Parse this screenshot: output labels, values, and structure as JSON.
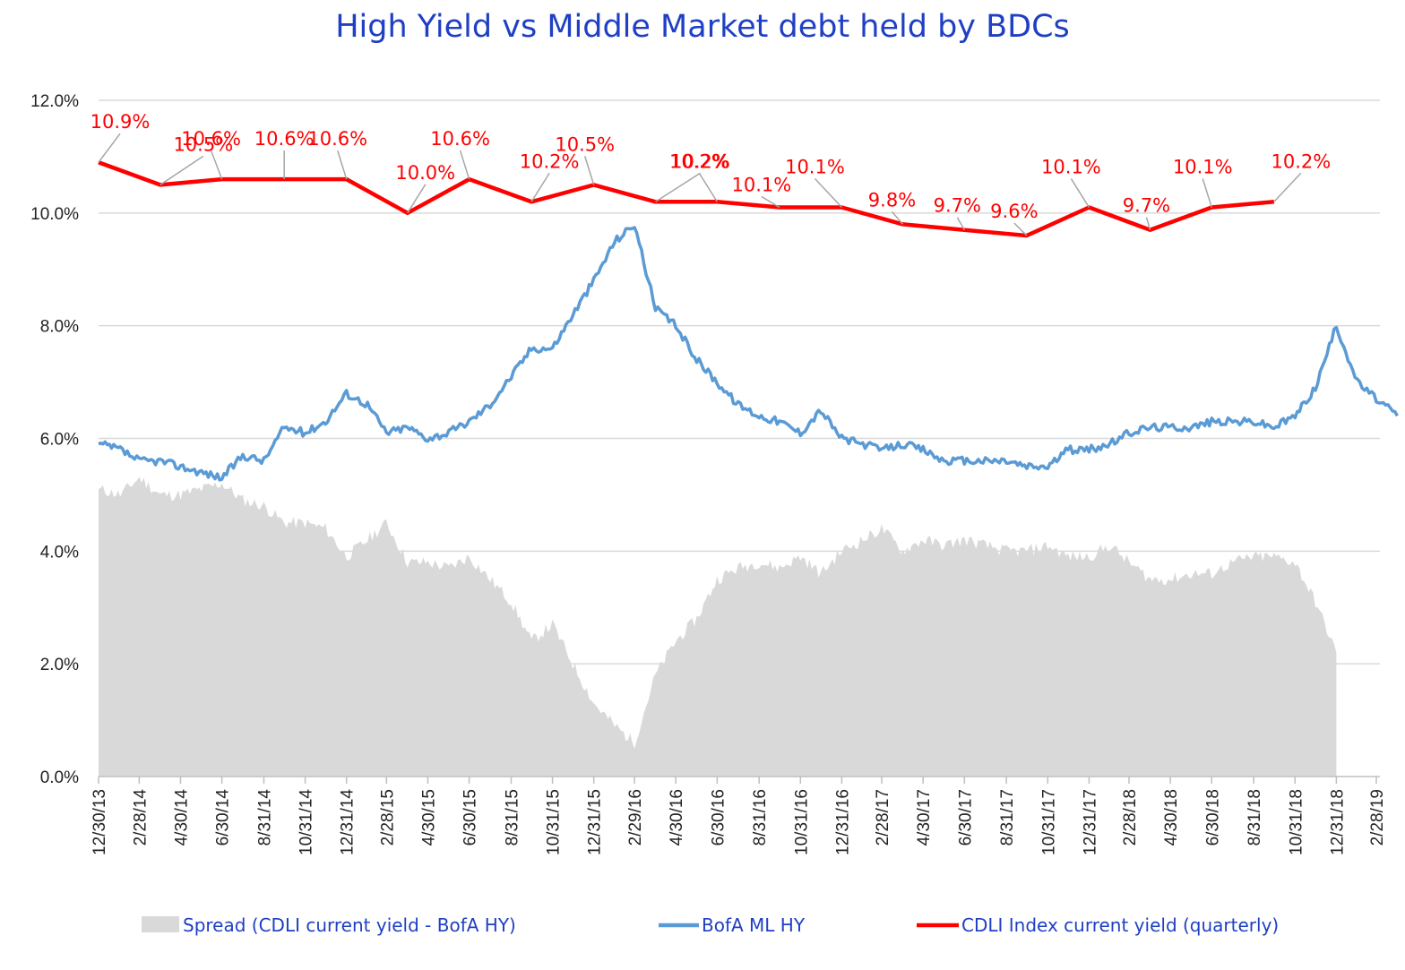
{
  "chart_data": {
    "type": "line",
    "title": "High Yield  vs  Middle Market debt held by BDCs",
    "xlabel": "",
    "ylabel": "",
    "ylim": [
      0,
      12
    ],
    "y_ticks": [
      "0.0%",
      "2.0%",
      "4.0%",
      "6.0%",
      "8.0%",
      "10.0%",
      "12.0%"
    ],
    "x_ticks": [
      "12/30/13",
      "2/28/14",
      "4/30/14",
      "6/30/14",
      "8/31/14",
      "10/31/14",
      "12/31/14",
      "2/28/15",
      "4/30/15",
      "6/30/15",
      "8/31/15",
      "10/31/15",
      "12/31/15",
      "2/29/16",
      "4/30/16",
      "6/30/16",
      "8/31/16",
      "10/31/16",
      "12/31/16",
      "2/28/17",
      "4/30/17",
      "6/30/17",
      "8/31/17",
      "10/31/17",
      "12/31/17",
      "2/28/18",
      "4/30/18",
      "6/30/18",
      "8/31/18",
      "10/31/18",
      "12/31/18",
      "2/28/19"
    ],
    "grid": true,
    "legend_position": "bottom",
    "colors": {
      "spread": "#d9d9d9",
      "hy": "#5b9bd5",
      "cdli": "#ff0000"
    },
    "series": [
      {
        "name": "Spread (CDLI current yield - BofA HY)",
        "type": "area",
        "x": [
          "12/30/13",
          "1/31/14",
          "2/28/14",
          "3/31/14",
          "4/30/14",
          "5/31/14",
          "6/30/14",
          "7/31/14",
          "8/31/14",
          "9/30/14",
          "10/31/14",
          "11/30/14",
          "12/31/14",
          "1/31/15",
          "2/28/15",
          "3/31/15",
          "4/30/15",
          "5/31/15",
          "6/30/15",
          "7/31/15",
          "8/31/15",
          "9/30/15",
          "10/31/15",
          "11/30/15",
          "12/31/15",
          "1/31/16",
          "2/29/16",
          "3/31/16",
          "4/30/16",
          "5/31/16",
          "6/30/16",
          "7/31/16",
          "8/31/16",
          "9/30/16",
          "10/31/16",
          "11/30/16",
          "12/31/16",
          "1/31/17",
          "2/28/17",
          "3/31/17",
          "4/30/17",
          "5/31/17",
          "6/30/17",
          "7/31/17",
          "8/31/17",
          "9/30/17",
          "10/31/17",
          "11/30/17",
          "12/31/17",
          "1/31/18",
          "2/28/18",
          "3/31/18",
          "4/30/18",
          "5/31/18",
          "6/30/18",
          "7/31/18",
          "8/31/18",
          "9/30/18",
          "10/31/18",
          "11/30/18",
          "12/31/18"
        ],
        "values": [
          5.1,
          5.0,
          5.3,
          5.0,
          5.0,
          5.1,
          5.2,
          4.9,
          4.8,
          4.5,
          4.5,
          4.4,
          3.9,
          4.2,
          4.5,
          3.8,
          3.8,
          3.7,
          3.9,
          3.5,
          3.1,
          2.4,
          2.7,
          2.0,
          1.3,
          0.9,
          0.6,
          1.8,
          2.4,
          2.8,
          3.5,
          3.7,
          3.8,
          3.7,
          3.9,
          3.6,
          4.0,
          4.2,
          4.4,
          4.0,
          4.2,
          4.1,
          4.2,
          4.1,
          4.0,
          4.0,
          4.1,
          3.9,
          3.9,
          4.1,
          3.8,
          3.5,
          3.5,
          3.6,
          3.6,
          3.8,
          3.9,
          3.9,
          3.8,
          3.1,
          2.2
        ]
      },
      {
        "name": "BofA ML HY",
        "type": "line",
        "x": [
          "12/30/13",
          "1/31/14",
          "2/28/14",
          "3/31/14",
          "4/30/14",
          "5/31/14",
          "6/30/14",
          "7/31/14",
          "8/31/14",
          "9/30/14",
          "10/31/14",
          "11/30/14",
          "12/31/14",
          "1/31/15",
          "2/28/15",
          "3/31/15",
          "4/30/15",
          "5/31/15",
          "6/30/15",
          "7/31/15",
          "8/31/15",
          "9/30/15",
          "10/31/15",
          "11/30/15",
          "12/31/15",
          "1/31/16",
          "2/29/16",
          "3/31/16",
          "4/30/16",
          "5/31/16",
          "6/30/16",
          "7/31/16",
          "8/31/16",
          "9/30/16",
          "10/31/16",
          "11/30/16",
          "12/31/16",
          "1/31/17",
          "2/28/17",
          "3/31/17",
          "4/30/17",
          "5/31/17",
          "6/30/17",
          "7/31/17",
          "8/31/17",
          "9/30/17",
          "10/31/17",
          "11/30/17",
          "12/31/17",
          "1/31/18",
          "2/28/18",
          "3/31/18",
          "4/30/18",
          "5/31/18",
          "6/30/18",
          "7/31/18",
          "8/31/18",
          "9/30/18",
          "10/31/18",
          "11/30/18",
          "12/31/18",
          "1/31/19",
          "2/28/19",
          "3/31/19"
        ],
        "values": [
          5.9,
          5.8,
          5.6,
          5.6,
          5.5,
          5.4,
          5.3,
          5.7,
          5.6,
          6.2,
          6.1,
          6.3,
          6.8,
          6.6,
          6.1,
          6.2,
          6.0,
          6.1,
          6.3,
          6.6,
          7.1,
          7.6,
          7.6,
          8.2,
          8.8,
          9.5,
          9.8,
          8.3,
          8.0,
          7.4,
          7.0,
          6.6,
          6.4,
          6.3,
          6.1,
          6.5,
          6.0,
          5.9,
          5.8,
          5.9,
          5.8,
          5.6,
          5.6,
          5.6,
          5.6,
          5.5,
          5.5,
          5.8,
          5.8,
          5.9,
          6.1,
          6.2,
          6.2,
          6.2,
          6.3,
          6.3,
          6.3,
          6.2,
          6.4,
          6.9,
          8.0,
          7.0,
          6.7,
          6.4
        ]
      },
      {
        "name": "CDLI Index current yield (quarterly)",
        "type": "line",
        "x": [
          "12/30/13",
          "3/31/14",
          "6/30/14",
          "9/30/14",
          "12/31/14",
          "3/31/15",
          "6/30/15",
          "9/30/15",
          "12/31/15",
          "3/31/16",
          "6/30/16",
          "9/30/16",
          "12/31/16",
          "3/31/17",
          "6/30/17",
          "9/30/17",
          "12/31/17",
          "3/31/18",
          "6/30/18",
          "9/30/18"
        ],
        "values": [
          10.9,
          10.5,
          10.6,
          10.6,
          10.6,
          10.0,
          10.6,
          10.2,
          10.5,
          10.2,
          10.2,
          10.1,
          10.1,
          9.8,
          9.7,
          9.6,
          10.1,
          9.7,
          10.1,
          10.2
        ],
        "labels": [
          "10.9%",
          "10.5%",
          "10.6%",
          "10.6%",
          "10.6%",
          "10.0%",
          "10.6%",
          "10.2%",
          "10.5%",
          "10.2%",
          "10.2%",
          "10.1%",
          "10.1%",
          "9.8%",
          "9.7%",
          "9.6%",
          "10.1%",
          "9.7%",
          "10.1%",
          "10.2%"
        ]
      }
    ]
  }
}
